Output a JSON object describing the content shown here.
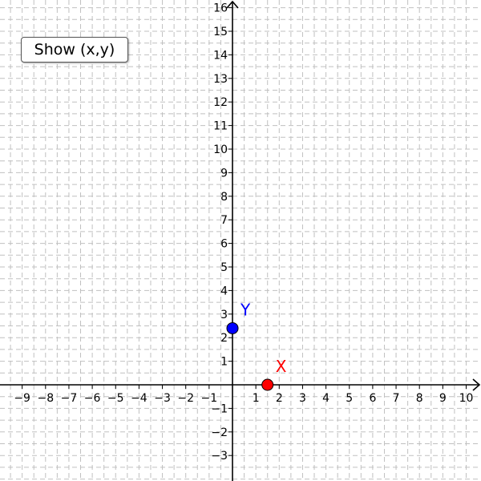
{
  "toolbar": {
    "show_button_label": "Show (x,y)"
  },
  "graph": {
    "x_range": [
      -10,
      10.4
    ],
    "y_range": [
      -4,
      16.3
    ],
    "x_tick_step": 1,
    "y_tick_step": 1,
    "minor_grid_step": 0.5,
    "grid": true,
    "grid_color": "#c0c0c0",
    "axis_color": "#000000",
    "x_tick_labels": [
      "−9",
      "−8",
      "−7",
      "−6",
      "−5",
      "−4",
      "−3",
      "−2",
      "−1",
      "1",
      "2",
      "3",
      "4",
      "5",
      "6",
      "7",
      "8",
      "9",
      "10"
    ],
    "y_tick_labels": [
      "−3",
      "−2",
      "−1",
      "1",
      "2",
      "3",
      "4",
      "5",
      "6",
      "7",
      "8",
      "9",
      "10",
      "11",
      "12",
      "13",
      "14",
      "15",
      "16"
    ],
    "points": [
      {
        "label": "X",
        "x": 1.5,
        "y": 0,
        "color": "#ff0000"
      },
      {
        "label": "Y",
        "x": 0,
        "y": 2.4,
        "color": "#0000ff"
      }
    ]
  }
}
